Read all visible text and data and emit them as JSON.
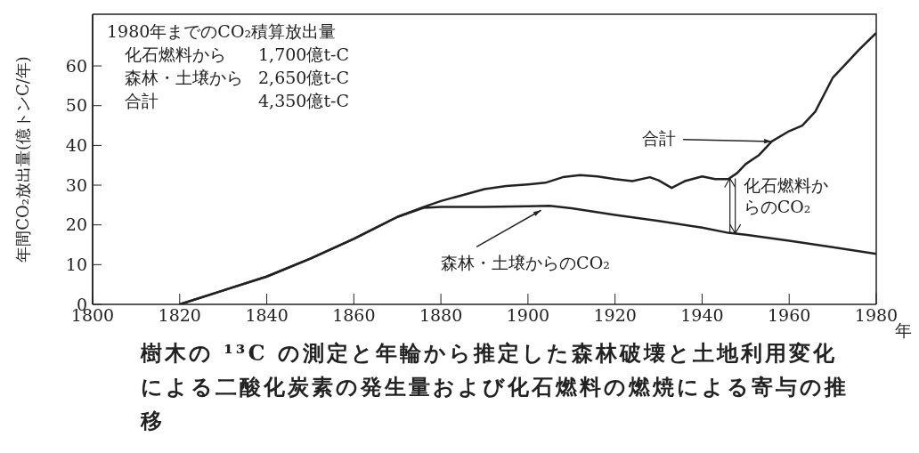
{
  "chart_data": {
    "type": "line",
    "xlabel": "年",
    "ylabel": "年間CO₂放出量(億トンC/年)",
    "xlim": [
      1800,
      1980
    ],
    "xticks": [
      1800,
      1820,
      1840,
      1860,
      1880,
      1900,
      1920,
      1940,
      1960,
      1980
    ],
    "ylim": [
      0,
      73
    ],
    "yticks": [
      0,
      10,
      20,
      30,
      40,
      50,
      60
    ],
    "grid": false,
    "marker": "none",
    "line_style": "solid",
    "series": [
      {
        "color": "#222222",
        "x": [
          1820,
          1830,
          1840,
          1850,
          1860,
          1870,
          1876,
          1880,
          1885,
          1890,
          1895,
          1900,
          1904,
          1908,
          1912,
          1916,
          1920,
          1924,
          1928,
          1930,
          1933,
          1936,
          1940,
          1943,
          1946,
          1948,
          1950,
          1953,
          1956,
          1960,
          1963,
          1966,
          1970,
          1973,
          1976,
          1980
        ],
        "values": [
          0,
          3.5,
          7,
          11.5,
          16.5,
          22,
          24.5,
          26,
          27.5,
          29,
          29.8,
          30.2,
          30.6,
          32,
          32.5,
          32.2,
          31.5,
          31,
          32,
          31.2,
          29.3,
          31,
          32.2,
          31.5,
          31.5,
          33,
          35.3,
          37.5,
          41,
          43.6,
          45,
          48.5,
          57,
          60.5,
          64,
          68.3
        ]
      },
      {
        "color": "#222222",
        "x": [
          1820,
          1830,
          1840,
          1850,
          1860,
          1870,
          1876,
          1880,
          1890,
          1900,
          1905,
          1910,
          1920,
          1930,
          1940,
          1946,
          1950,
          1960,
          1970,
          1980
        ],
        "values": [
          0,
          3.5,
          7,
          11.5,
          16.5,
          22,
          24.3,
          24.5,
          24.5,
          24.7,
          24.8,
          24.2,
          22.5,
          21,
          19.3,
          18,
          17.5,
          16,
          14.4,
          12.7
        ]
      }
    ],
    "annotations": [
      "1980年までのCO₂積算放出量",
      "化石燃料から\t1,700億t-C",
      "森林・土壌から\t2,650億t-C",
      "合計\t4,350億t-C",
      {
        "text": "合計",
        "x": 1956,
        "y": 41
      },
      {
        "text": "森林・土壌からのCO₂",
        "x": 1903,
        "y": 24.8
      },
      {
        "text": "化石燃料からのCO₂",
        "x": 1947,
        "y": 31.7
      },
      "樹木の ¹³C の測定と年輪から推定した森林破壊と土地利用変化による二酸化炭素の発生量および化石燃料の燃焼による寄与の推移"
    ]
  }
}
